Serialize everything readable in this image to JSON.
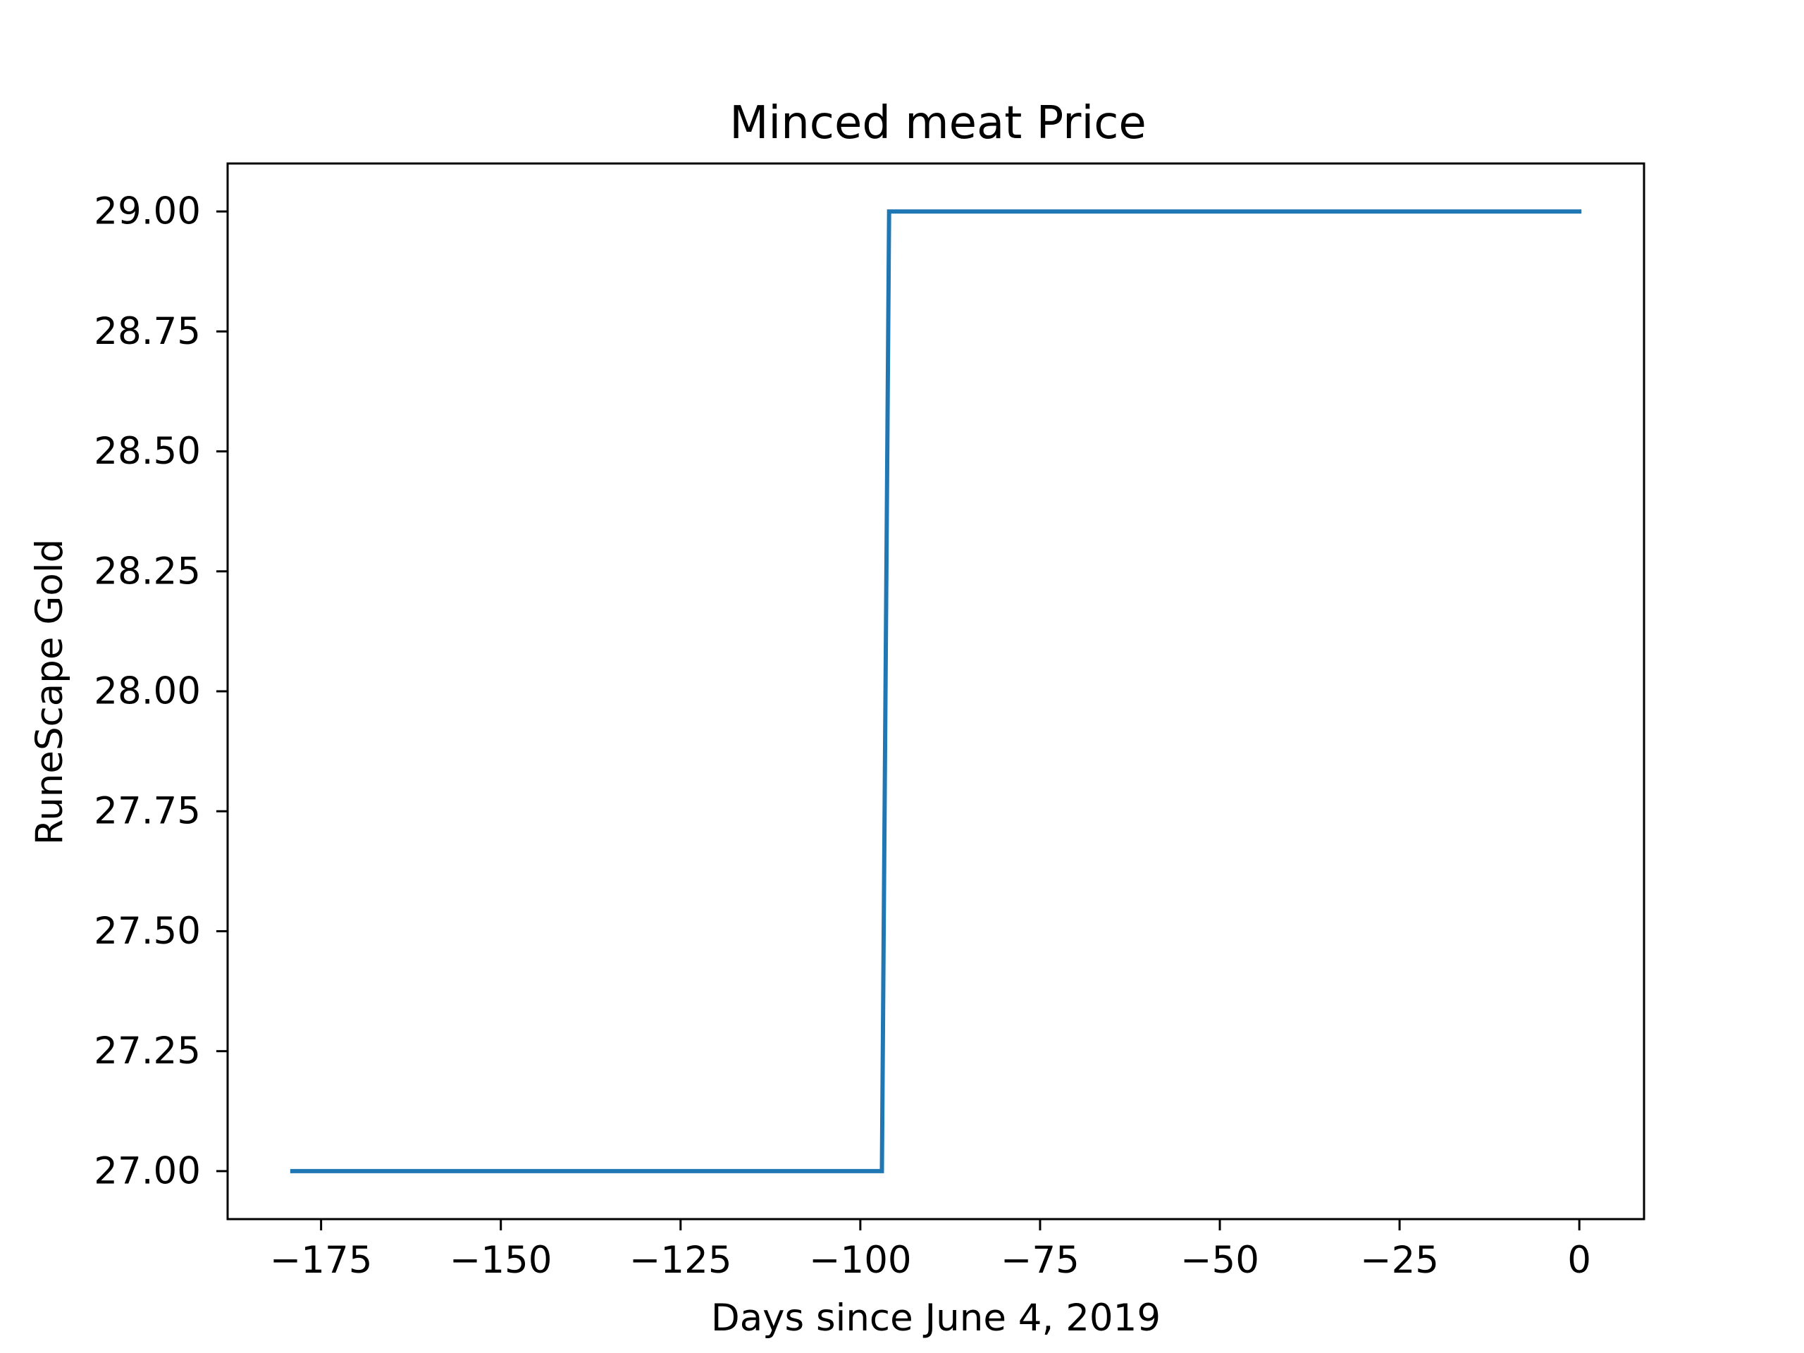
{
  "chart_data": {
    "type": "line",
    "title": "Minced meat Price",
    "xlabel": "Days since June 4, 2019",
    "ylabel": "RuneScape Gold",
    "xlim": [
      -188,
      9
    ],
    "ylim": [
      26.9,
      29.1
    ],
    "xticks": [
      -175,
      -150,
      -125,
      -100,
      -75,
      -50,
      -25,
      0
    ],
    "xtick_labels": [
      "−175",
      "−150",
      "−125",
      "−100",
      "−75",
      "−50",
      "−25",
      "0"
    ],
    "yticks": [
      27.0,
      27.25,
      27.5,
      27.75,
      28.0,
      28.25,
      28.5,
      28.75,
      29.0
    ],
    "ytick_labels": [
      "27.00",
      "27.25",
      "27.50",
      "27.75",
      "28.00",
      "28.25",
      "28.50",
      "28.75",
      "29.00"
    ],
    "grid": false,
    "series": [
      {
        "color": "#1f77b4",
        "x": [
          -179,
          -97,
          -96,
          0
        ],
        "y": [
          27,
          27,
          29,
          29
        ]
      }
    ]
  }
}
